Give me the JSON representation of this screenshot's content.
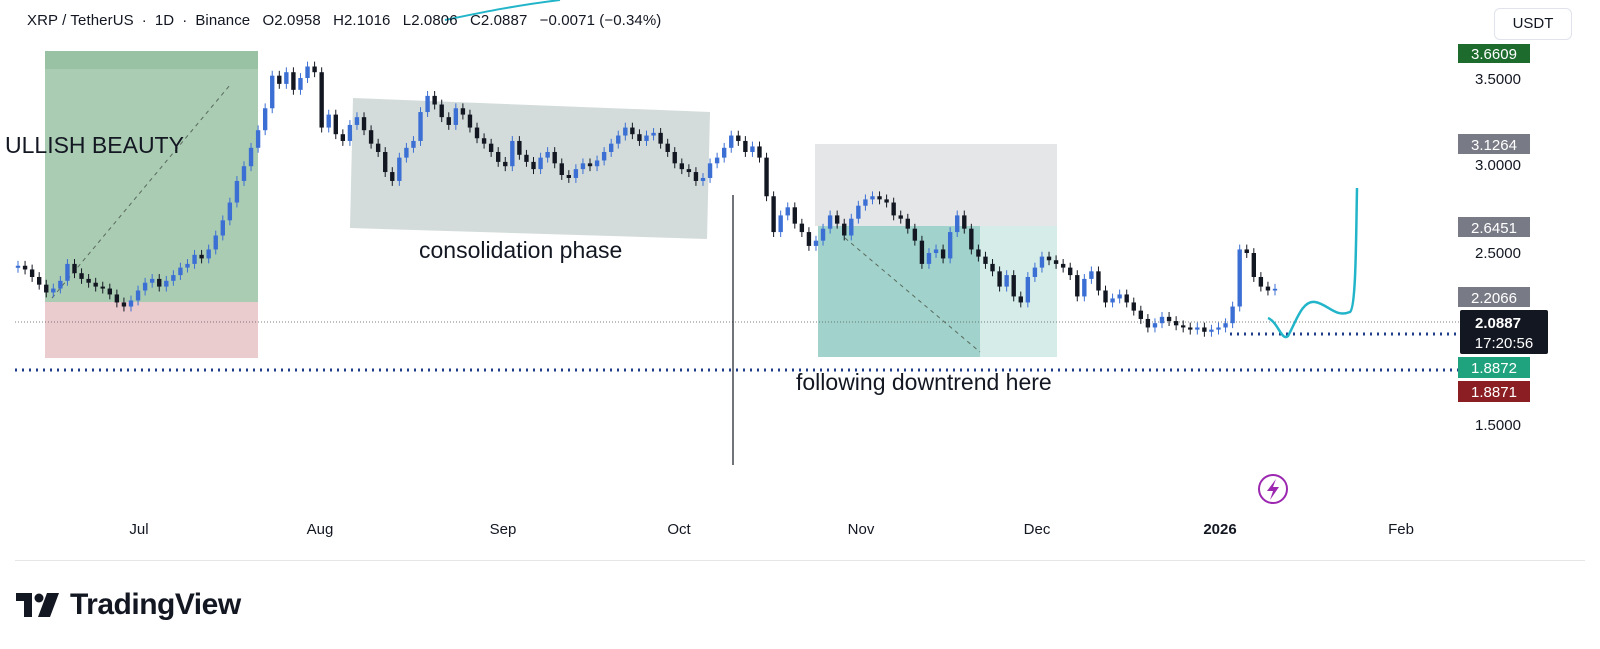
{
  "header": {
    "pair": "XRP / TetherUS",
    "timeframe": "1D",
    "exchange": "Binance",
    "open": "O2.0958",
    "high": "H2.1016",
    "low": "L2.0806",
    "close": "C2.0887",
    "change": "−0.0071 (−0.34%)",
    "currency": "USDT"
  },
  "brand": {
    "name": "TradingView"
  },
  "annotations": {
    "bullish": "ULLISH BEAUTY",
    "consolidation": "consolidation phase",
    "downtrend": "following downtrend here"
  },
  "colors": {
    "up_candle": "#3b6fd4",
    "down_candle": "#131722",
    "long_profit": "#1f7a36",
    "long_loss": "#d9a1a6",
    "short_profit": "#2e9e8e",
    "projection": "#22b5c9",
    "support_line": "#1f3c8a",
    "price_tag": "#131722",
    "green_tag": "#1fa37f",
    "red_tag": "#8b1e22",
    "gray_tag": "#787b86",
    "dark_green_tag": "#1e6b2e",
    "lightning": "#9c27b0"
  },
  "chart_data": {
    "type": "candlestick",
    "title": "",
    "xlabel": "",
    "ylabel": "",
    "ylim": [
      1.2,
      3.75
    ],
    "y_scale": "log",
    "grid": false,
    "x_ticks": [
      "Jul",
      "Aug",
      "Sep",
      "Oct",
      "Nov",
      "Dec",
      "2026",
      "Feb"
    ],
    "y_ticks": [
      "3.5000",
      "3.0000",
      "2.5000",
      "1.5000"
    ],
    "price_tags": [
      {
        "label": "3.6609",
        "value": 3.6609,
        "style": "dark_green_tag"
      },
      {
        "label": "3.1264",
        "value": 3.1264,
        "style": "gray_tag"
      },
      {
        "label": "2.6451",
        "value": 2.6451,
        "style": "gray_tag"
      },
      {
        "label": "2.2066",
        "value": 2.2066,
        "style": "gray_tag"
      },
      {
        "label": "1.8872",
        "value": 1.8872,
        "style": "green_tag"
      },
      {
        "label": "1.8871",
        "value": 1.8871,
        "style": "red_tag"
      }
    ],
    "last_price": {
      "label": "2.0887",
      "countdown": "17:20:56",
      "value": 2.0887
    },
    "support_level": 1.8871,
    "current_level": 1.98,
    "series": [
      {
        "candles_close": [
          2.21,
          2.19,
          2.15,
          2.11,
          2.07,
          2.09,
          2.13,
          2.22,
          2.17,
          2.14,
          2.12,
          2.1,
          2.09,
          2.06,
          2.02,
          2.0,
          2.03,
          2.08,
          2.12,
          2.14,
          2.1,
          2.13,
          2.16,
          2.2,
          2.22,
          2.27,
          2.25,
          2.3,
          2.38,
          2.47,
          2.58,
          2.72,
          2.82,
          2.95,
          3.08,
          3.25,
          3.52,
          3.45,
          3.55,
          3.4,
          3.5,
          3.6,
          3.55,
          3.1,
          3.2,
          3.05,
          3.0,
          3.12,
          3.18,
          3.08,
          2.98,
          2.92,
          2.78,
          2.72,
          2.88,
          2.95,
          3.0,
          3.22,
          3.35,
          3.28,
          3.18,
          3.12,
          3.25,
          3.2,
          3.1,
          3.02,
          2.98,
          2.92,
          2.85,
          2.82,
          3.0,
          2.9,
          2.85,
          2.8,
          2.88,
          2.92,
          2.84,
          2.76,
          2.74,
          2.8,
          2.84,
          2.82,
          2.86,
          2.92,
          2.98,
          3.04,
          3.1,
          3.05,
          3.0,
          3.04,
          3.06,
          2.98,
          2.92,
          2.84,
          2.8,
          2.78,
          2.72,
          2.74,
          2.84,
          2.88,
          2.95,
          3.04,
          3.0,
          2.92,
          2.96,
          2.88,
          2.62,
          2.4,
          2.5,
          2.55,
          2.45,
          2.4,
          2.32,
          2.35,
          2.42,
          2.5,
          2.45,
          2.38,
          2.48,
          2.56,
          2.6,
          2.62,
          2.6,
          2.58,
          2.5,
          2.48,
          2.42,
          2.35,
          2.22,
          2.28,
          2.3,
          2.25,
          2.4,
          2.5,
          2.42,
          2.3,
          2.26,
          2.22,
          2.18,
          2.1,
          2.16,
          2.05,
          2.02,
          2.15,
          2.2,
          2.26,
          2.24,
          2.22,
          2.2,
          2.16,
          2.05,
          2.14,
          2.18,
          2.08,
          2.02,
          2.04,
          2.06,
          2.02,
          1.98,
          1.94,
          1.9,
          1.92,
          1.95,
          1.93,
          1.91,
          1.9,
          1.89,
          1.9,
          1.88,
          1.89,
          1.9,
          1.92,
          2.0,
          2.3,
          2.28,
          2.15,
          2.1,
          2.08,
          2.0887
        ]
      }
    ],
    "projection": {
      "description_points": [
        2.02,
        1.98,
        2.12,
        2.16,
        2.1,
        2.8
      ]
    }
  }
}
